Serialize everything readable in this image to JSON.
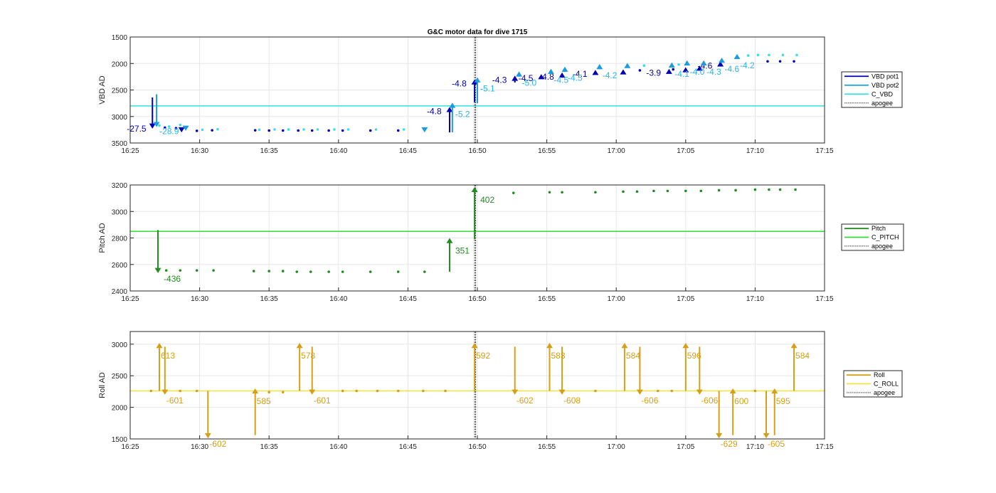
{
  "chart_data": [
    {
      "type": "scatter",
      "title": "G&C motor data for dive 1715",
      "ylabel": "VBD AD",
      "xlim": [
        "16:25",
        "17:15"
      ],
      "ylim": [
        1500,
        3500
      ],
      "y_reversed": true,
      "x_ticks": [
        "16:25",
        "16:30",
        "16:35",
        "16:40",
        "16:45",
        "16:50",
        "16:55",
        "17:00",
        "17:05",
        "17:10",
        "17:15"
      ],
      "y_ticks": [
        "1500",
        "2000",
        "2500",
        "3000",
        "3500"
      ],
      "grid": true,
      "legend": [
        "VBD pot1",
        "VBD pot2",
        "C_VBD",
        "apogee"
      ],
      "legend_position": "right",
      "colors": {
        "pot1": "#0000b4",
        "pot2": "#1e9be0",
        "c_vbd": "#3cdce6",
        "c_vbd_line": "#33e0e0",
        "labels1": "#0000b4",
        "labels2": "#2ab4e8",
        "apogee": "#404040"
      },
      "apogee_x": "16:49.8",
      "c_vbd": 2800,
      "points_pot1": [
        [
          "16:27.5",
          3210
        ],
        [
          "16:28.3",
          3220
        ],
        [
          "16:29.8",
          3270
        ],
        [
          "16:30.9",
          3260
        ],
        [
          "16:34.0",
          3260
        ],
        [
          "16:35.0",
          3265
        ],
        [
          "16:36.0",
          3265
        ],
        [
          "16:37.1",
          3265
        ],
        [
          "16:38.1",
          3265
        ],
        [
          "16:39.3",
          3265
        ],
        [
          "16:40.3",
          3265
        ],
        [
          "16:42.3",
          3265
        ],
        [
          "16:44.3",
          3265
        ],
        [
          "17:01.7",
          2130
        ],
        [
          "17:04.1",
          2110
        ],
        [
          "17:10.9",
          1960
        ],
        [
          "17:11.8",
          1960
        ],
        [
          "17:12.8",
          1960
        ]
      ],
      "points_pot2": [
        [
          "16:27.1",
          3170
        ],
        [
          "16:27.8",
          3190
        ],
        [
          "16:28.6",
          3160
        ],
        [
          "16:30.2",
          3250
        ],
        [
          "16:31.3",
          3240
        ],
        [
          "16:34.3",
          3250
        ],
        [
          "16:35.4",
          3245
        ],
        [
          "16:36.4",
          3245
        ],
        [
          "16:37.5",
          3245
        ],
        [
          "16:38.5",
          3245
        ],
        [
          "16:39.7",
          3245
        ],
        [
          "16:40.7",
          3245
        ],
        [
          "16:42.7",
          3245
        ],
        [
          "16:44.7",
          3245
        ],
        [
          "17:02.0",
          2040
        ],
        [
          "17:04.5",
          2020
        ],
        [
          "17:09.5",
          1850
        ],
        [
          "17:10.2",
          1840
        ],
        [
          "17:11.0",
          1840
        ],
        [
          "17:12.0",
          1840
        ],
        [
          "17:13.0",
          1840
        ]
      ],
      "moves_pot1": [
        {
          "x": "16:26.6",
          "y0": 2640,
          "y1": 3230,
          "label": "-27.5"
        },
        {
          "x": "16:28.7",
          "y0": 3220,
          "y1": 3300,
          "label": ""
        },
        {
          "x": "16:48.0",
          "y0": 3300,
          "y1": 2820,
          "label": "-4.8"
        },
        {
          "x": "16:49.8",
          "y0": 2730,
          "y1": 2300,
          "label": "-4.8"
        },
        {
          "x": "16:52.7",
          "y0": 2360,
          "y1": 2230,
          "label": "-4.3"
        },
        {
          "x": "16:54.6",
          "y0": 2280,
          "y1": 2200,
          "label": "-4.5"
        },
        {
          "x": "16:56.1",
          "y0": 2250,
          "y1": 2170,
          "label": "-4.8"
        },
        {
          "x": "16:58.5",
          "y0": 2200,
          "y1": 2120,
          "label": "-4.1"
        },
        {
          "x": "17:00.5",
          "y0": 2180,
          "y1": 2110,
          "label": ""
        },
        {
          "x": "17:03.8",
          "y0": 2160,
          "y1": 2100,
          "label": "-3.9"
        },
        {
          "x": "17:05.0",
          "y0": 2130,
          "y1": 2070,
          "label": ""
        },
        {
          "x": "17:06.0",
          "y0": 2100,
          "y1": 2040,
          "label": ""
        },
        {
          "x": "17:07.5",
          "y0": 2020,
          "y1": 1960,
          "label": "-4.6"
        }
      ],
      "moves_pot2": [
        {
          "x": "16:26.9",
          "y0": 2580,
          "y1": 3200,
          "label": "-28.9"
        },
        {
          "x": "16:29.0",
          "y0": 3240,
          "y1": 3270,
          "label": ""
        },
        {
          "x": "16:46.2",
          "y0": 3260,
          "y1": 3300,
          "label": ""
        },
        {
          "x": "16:48.2",
          "y0": 3300,
          "y1": 2740,
          "label": "-5.2"
        },
        {
          "x": "16:50.0",
          "y0": 2750,
          "y1": 2260,
          "label": "-5.1"
        },
        {
          "x": "16:53.0",
          "y0": 2250,
          "y1": 2150,
          "label": "-5.0"
        },
        {
          "x": "16:55.3",
          "y0": 2200,
          "y1": 2100,
          "label": "-4.5"
        },
        {
          "x": "16:56.3",
          "y0": 2160,
          "y1": 2060,
          "label": "-4.5"
        },
        {
          "x": "16:58.8",
          "y0": 2110,
          "y1": 2010,
          "label": "-4.2"
        },
        {
          "x": "17:00.8",
          "y0": 2080,
          "y1": 1990,
          "label": ""
        },
        {
          "x": "17:04.0",
          "y0": 2050,
          "y1": 1980,
          "label": "-4.1"
        },
        {
          "x": "17:05.1",
          "y0": 2020,
          "y1": 1940,
          "label": "-4.0"
        },
        {
          "x": "17:06.3",
          "y0": 2010,
          "y1": 1940,
          "label": "-4.3"
        },
        {
          "x": "17:07.6",
          "y0": 1960,
          "y1": 1890,
          "label": "-4.6"
        },
        {
          "x": "17:08.7",
          "y0": 1900,
          "y1": 1820,
          "label": "-4.2"
        }
      ]
    },
    {
      "type": "scatter",
      "ylabel": "Pitch AD",
      "xlim": [
        "16:25",
        "17:15"
      ],
      "ylim": [
        2400,
        3200
      ],
      "x_ticks": [
        "16:25",
        "16:30",
        "16:35",
        "16:40",
        "16:45",
        "16:50",
        "16:55",
        "17:00",
        "17:05",
        "17:10",
        "17:15"
      ],
      "y_ticks": [
        "2400",
        "2600",
        "2800",
        "3000",
        "3200"
      ],
      "grid": true,
      "legend": [
        "Pitch",
        "C_PITCH",
        "apogee"
      ],
      "legend_position": "right",
      "colors": {
        "pitch": "#228b22",
        "c_pitch": "#33dd33",
        "labels": "#228b22",
        "apogee": "#404040"
      },
      "apogee_x": "16:49.8",
      "c_pitch": 2850,
      "points": [
        [
          "16:27.6",
          2555
        ],
        [
          "16:28.6",
          2555
        ],
        [
          "16:29.8",
          2555
        ],
        [
          "16:31.0",
          2555
        ],
        [
          "16:33.9",
          2550
        ],
        [
          "16:35.0",
          2550
        ],
        [
          "16:36.0",
          2550
        ],
        [
          "16:37.0",
          2545
        ],
        [
          "16:38.0",
          2545
        ],
        [
          "16:39.3",
          2545
        ],
        [
          "16:40.3",
          2545
        ],
        [
          "16:42.3",
          2545
        ],
        [
          "16:44.3",
          2545
        ],
        [
          "16:46.2",
          2545
        ],
        [
          "16:52.6",
          3140
        ],
        [
          "16:55.2",
          3145
        ],
        [
          "16:56.1",
          3145
        ],
        [
          "16:58.5",
          3145
        ],
        [
          "17:00.5",
          3150
        ],
        [
          "17:01.5",
          3150
        ],
        [
          "17:02.7",
          3155
        ],
        [
          "17:03.7",
          3155
        ],
        [
          "17:05.0",
          3155
        ],
        [
          "17:06.1",
          3155
        ],
        [
          "17:07.4",
          3160
        ],
        [
          "17:08.6",
          3160
        ],
        [
          "17:10.0",
          3165
        ],
        [
          "17:11.0",
          3165
        ],
        [
          "17:11.8",
          3165
        ],
        [
          "17:12.9",
          3165
        ]
      ],
      "moves": [
        {
          "x": "16:27.0",
          "y0": 2860,
          "y1": 2535,
          "label": "-436"
        },
        {
          "x": "16:48.0",
          "y0": 2545,
          "y1": 2800,
          "label": "351"
        },
        {
          "x": "16:49.8",
          "y0": 2790,
          "y1": 3185,
          "label": "402"
        }
      ]
    },
    {
      "type": "scatter",
      "ylabel": "Roll AD",
      "xlim": [
        "16:25",
        "17:15"
      ],
      "ylim": [
        1500,
        3200
      ],
      "x_ticks": [
        "16:25",
        "16:30",
        "16:35",
        "16:40",
        "16:45",
        "16:50",
        "16:55",
        "17:00",
        "17:05",
        "17:10",
        "17:15"
      ],
      "y_ticks": [
        "1500",
        "2000",
        "2500",
        "3000"
      ],
      "grid": true,
      "legend": [
        "Roll",
        "C_ROLL",
        "apogee"
      ],
      "legend_position": "right",
      "colors": {
        "roll": "#d4a017",
        "c_roll": "#f0e040",
        "labels": "#d4a017",
        "apogee": "#404040"
      },
      "apogee_x": "16:49.8",
      "c_roll": 2260,
      "points": [
        [
          "16:26.5",
          2260
        ],
        [
          "16:28.6",
          2260
        ],
        [
          "16:29.8",
          2260
        ],
        [
          "16:35.0",
          2240
        ],
        [
          "16:36.0",
          2240
        ],
        [
          "16:40.3",
          2260
        ],
        [
          "16:41.3",
          2260
        ],
        [
          "16:42.8",
          2260
        ],
        [
          "16:44.3",
          2260
        ],
        [
          "16:46.1",
          2260
        ],
        [
          "16:47.7",
          2260
        ],
        [
          "16:58.5",
          2260
        ],
        [
          "17:03.0",
          2260
        ],
        [
          "17:04.0",
          2260
        ],
        [
          "17:10.0",
          2260
        ]
      ],
      "moves": [
        {
          "x": "16:27.1",
          "y0": 2260,
          "y1": 3020,
          "label": "613"
        },
        {
          "x": "16:27.5",
          "y0": 2960,
          "y1": 2200,
          "label": "-601"
        },
        {
          "x": "16:30.6",
          "y0": 2260,
          "y1": 1510,
          "label": "-602"
        },
        {
          "x": "16:34.0",
          "y0": 1560,
          "y1": 2300,
          "label": "585"
        },
        {
          "x": "16:37.2",
          "y0": 2260,
          "y1": 3020,
          "label": "578"
        },
        {
          "x": "16:38.1",
          "y0": 2960,
          "y1": 2200,
          "label": "-601"
        },
        {
          "x": "16:49.8",
          "y0": 2260,
          "y1": 3020,
          "label": "592"
        },
        {
          "x": "16:52.7",
          "y0": 2960,
          "y1": 2200,
          "label": "-602"
        },
        {
          "x": "16:55.2",
          "y0": 2260,
          "y1": 3020,
          "label": "583"
        },
        {
          "x": "16:56.1",
          "y0": 2960,
          "y1": 2200,
          "label": "-608"
        },
        {
          "x": "17:00.6",
          "y0": 2260,
          "y1": 3020,
          "label": "584"
        },
        {
          "x": "17:01.7",
          "y0": 2960,
          "y1": 2200,
          "label": "-606"
        },
        {
          "x": "17:05.0",
          "y0": 2260,
          "y1": 3020,
          "label": "596"
        },
        {
          "x": "17:06.0",
          "y0": 2960,
          "y1": 2200,
          "label": "-606"
        },
        {
          "x": "17:07.4",
          "y0": 2260,
          "y1": 1510,
          "label": "-629"
        },
        {
          "x": "17:08.4",
          "y0": 1560,
          "y1": 2300,
          "label": "600"
        },
        {
          "x": "17:10.8",
          "y0": 2260,
          "y1": 1510,
          "label": "-605"
        },
        {
          "x": "17:11.4",
          "y0": 1560,
          "y1": 2300,
          "label": "595"
        },
        {
          "x": "17:12.8",
          "y0": 2260,
          "y1": 3020,
          "label": "584"
        }
      ]
    }
  ]
}
